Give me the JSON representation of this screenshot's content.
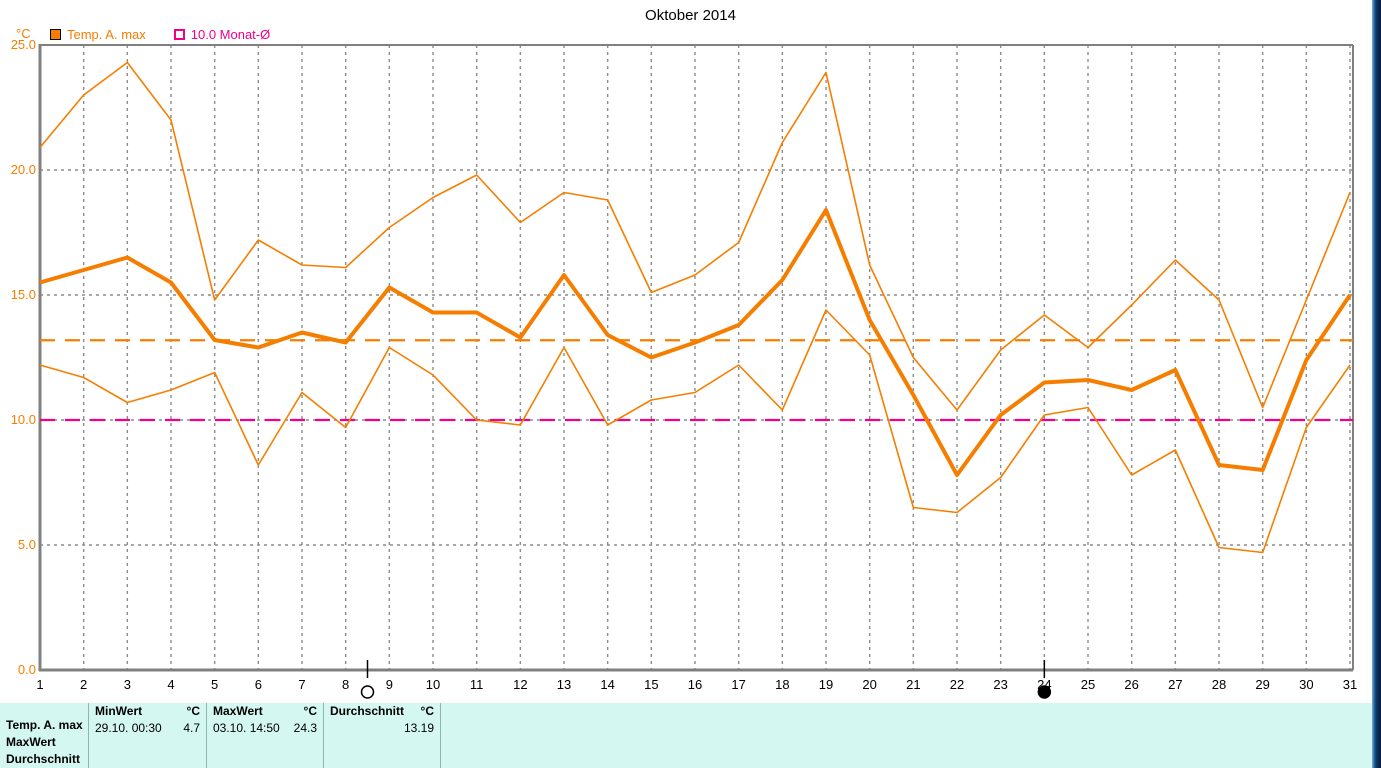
{
  "title": "Oktober 2014",
  "y_axis_unit": "°C",
  "legend": {
    "items": [
      {
        "label": "Temp. A. max",
        "color": "#F57E00",
        "swatch": "filled-square"
      },
      {
        "label": "10.0 Monat-Ø",
        "color": "#F0008C",
        "swatch": "outline-square"
      }
    ]
  },
  "chart_data": {
    "type": "line",
    "title": "Oktober 2014",
    "ylabel": "°C",
    "ylim": [
      0,
      25
    ],
    "yticks": [
      25,
      20,
      15,
      10,
      5,
      0
    ],
    "ytick_labels": [
      "25.0",
      "20.0",
      "15.0",
      "10.0",
      "5.0",
      "0.0"
    ],
    "x": [
      1,
      2,
      3,
      4,
      5,
      6,
      7,
      8,
      9,
      10,
      11,
      12,
      13,
      14,
      15,
      16,
      17,
      18,
      19,
      20,
      21,
      22,
      23,
      24,
      25,
      26,
      27,
      28,
      29,
      30,
      31
    ],
    "grid": "dashed-gray",
    "legend_position": "top-left",
    "series": [
      {
        "name": "temp-a-max-daily-high",
        "emphasis": "thin",
        "color": "#F57E00",
        "values": [
          20.9,
          23.0,
          24.3,
          22.0,
          14.8,
          17.2,
          16.2,
          16.1,
          17.7,
          18.9,
          19.8,
          17.9,
          19.1,
          18.8,
          15.1,
          15.8,
          17.1,
          21.1,
          23.9,
          16.2,
          12.5,
          10.4,
          12.8,
          14.2,
          12.9,
          14.6,
          16.4,
          14.8,
          10.5,
          14.8,
          19.1
        ]
      },
      {
        "name": "temp-a-max-daily-mean",
        "emphasis": "thick",
        "color": "#F57E00",
        "values": [
          15.5,
          16.0,
          16.5,
          15.5,
          13.2,
          12.9,
          13.5,
          13.1,
          15.3,
          14.3,
          14.3,
          13.3,
          15.8,
          13.4,
          12.5,
          13.1,
          13.8,
          15.6,
          18.4,
          14.0,
          11.0,
          7.8,
          10.2,
          11.5,
          11.6,
          11.2,
          12.0,
          8.2,
          8.0,
          12.4,
          15.0
        ]
      },
      {
        "name": "temp-a-max-daily-low",
        "emphasis": "thin",
        "color": "#F57E00",
        "values": [
          12.2,
          11.7,
          10.7,
          11.2,
          11.9,
          8.2,
          11.1,
          9.7,
          12.9,
          11.8,
          10.0,
          9.8,
          12.9,
          9.8,
          10.8,
          11.1,
          12.2,
          10.4,
          14.4,
          12.6,
          6.5,
          6.3,
          7.7,
          10.2,
          10.5,
          7.8,
          8.8,
          4.9,
          4.7,
          9.7,
          12.2
        ]
      }
    ],
    "reference_lines": [
      {
        "name": "monthly-average",
        "value": 13.19,
        "color": "#F57E00",
        "style": "dashed"
      },
      {
        "name": "monat-avg-10-0",
        "value": 10.0,
        "color": "#F0008C",
        "style": "dashed"
      }
    ],
    "moon_markers": [
      {
        "x": 8.5,
        "phase": "full"
      },
      {
        "x": 24,
        "phase": "new"
      }
    ]
  },
  "table": {
    "row_labels": [
      "Temp. A. max",
      "MaxWert",
      "Durchschnitt"
    ],
    "groups": [
      {
        "header": "MinWert",
        "unit": "°C",
        "datetime": "29.10.  00:30",
        "value": "4.7"
      },
      {
        "header": "MaxWert",
        "unit": "°C",
        "datetime": "03.10.  14:50",
        "value": "24.3"
      },
      {
        "header": "Durchschnitt",
        "unit": "°C",
        "datetime": "",
        "value": "13.19"
      }
    ]
  }
}
